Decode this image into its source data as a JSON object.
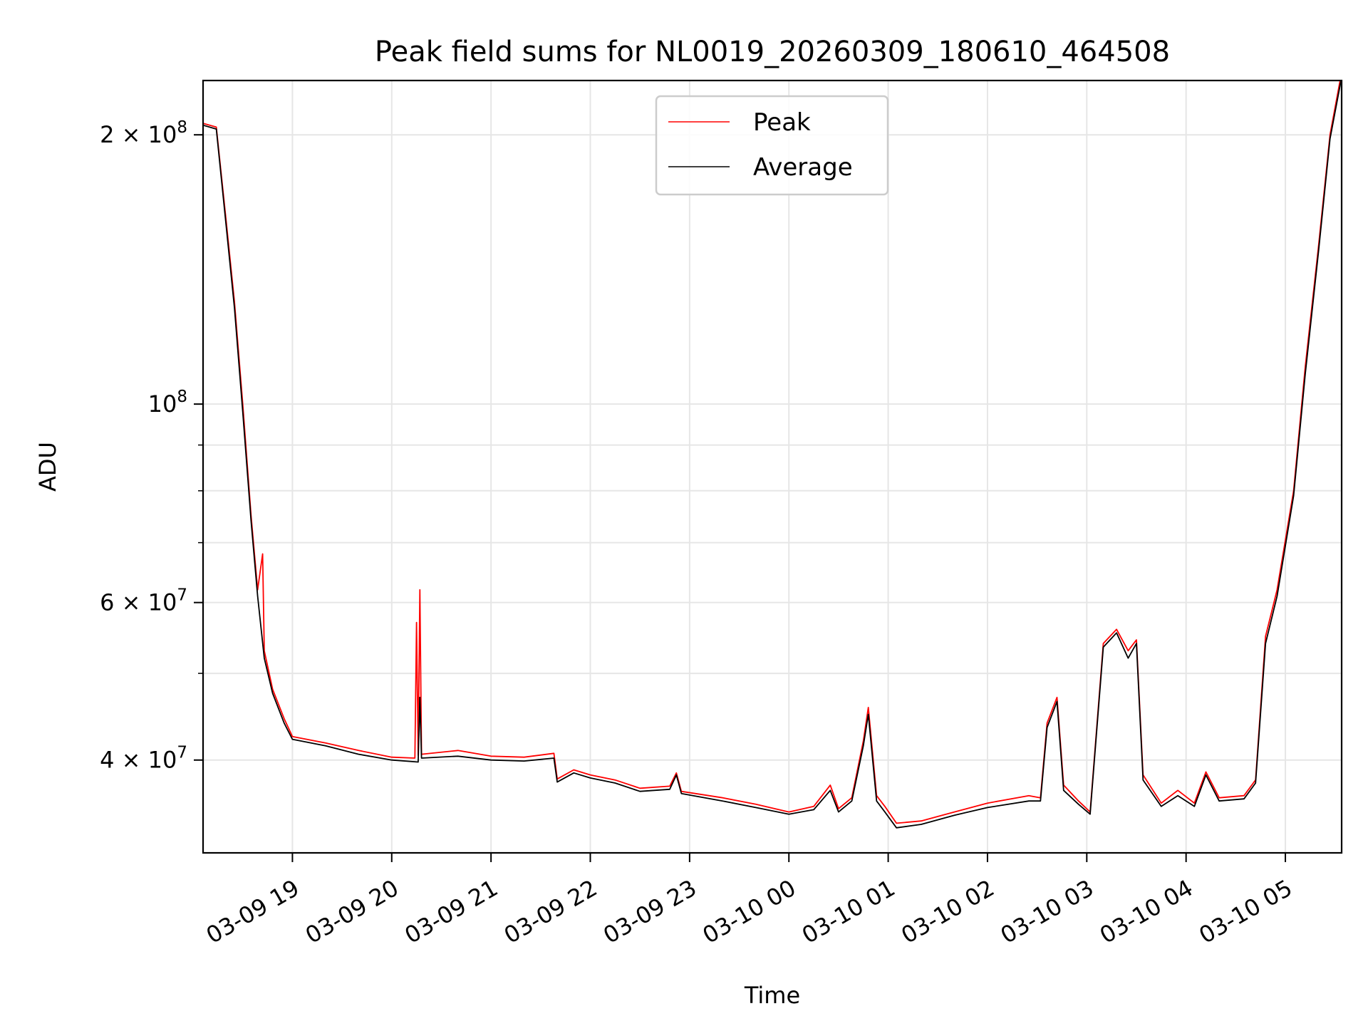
{
  "chart_data": {
    "type": "line",
    "title": "Peak field sums for NL0019_20260309_180610_464508",
    "xlabel": "Time",
    "ylabel": "ADU",
    "y_scale": "log",
    "ylim": [
      31500000,
      230000000
    ],
    "xlim": [
      "2026-03-09 18:06",
      "2026-03-10 05:34"
    ],
    "grid": true,
    "legend_position": "top-center",
    "x_ticks": [
      {
        "value": "2026-03-09 19:00",
        "label": "03-09 19"
      },
      {
        "value": "2026-03-09 20:00",
        "label": "03-09 20"
      },
      {
        "value": "2026-03-09 21:00",
        "label": "03-09 21"
      },
      {
        "value": "2026-03-09 22:00",
        "label": "03-09 22"
      },
      {
        "value": "2026-03-09 23:00",
        "label": "03-09 23"
      },
      {
        "value": "2026-03-10 00:00",
        "label": "03-10 00"
      },
      {
        "value": "2026-03-10 01:00",
        "label": "03-10 01"
      },
      {
        "value": "2026-03-10 02:00",
        "label": "03-10 02"
      },
      {
        "value": "2026-03-10 03:00",
        "label": "03-10 03"
      },
      {
        "value": "2026-03-10 04:00",
        "label": "03-10 04"
      },
      {
        "value": "2026-03-10 05:00",
        "label": "03-10 05"
      }
    ],
    "y_ticks_major": [
      {
        "value": 40000000,
        "base": "4 × 10",
        "exp": "7"
      },
      {
        "value": 60000000,
        "base": "6 × 10",
        "exp": "7"
      },
      {
        "value": 100000000,
        "base": "10",
        "exp": "8"
      },
      {
        "value": 200000000,
        "base": "2 × 10",
        "exp": "8"
      }
    ],
    "y_ticks_minor": [
      50000000,
      70000000,
      80000000,
      90000000
    ],
    "series": [
      {
        "name": "Peak",
        "color": "#ff0000",
        "points": [
          [
            "2026-03-09 18:06",
            206000000
          ],
          [
            "2026-03-09 18:14",
            204000000
          ],
          [
            "2026-03-09 18:20",
            160000000
          ],
          [
            "2026-03-09 18:25",
            130000000
          ],
          [
            "2026-03-09 18:30",
            100000000
          ],
          [
            "2026-03-09 18:35",
            75000000
          ],
          [
            "2026-03-09 18:39",
            62000000
          ],
          [
            "2026-03-09 18:42",
            68000000
          ],
          [
            "2026-03-09 18:43",
            53000000
          ],
          [
            "2026-03-09 18:48",
            48000000
          ],
          [
            "2026-03-09 18:55",
            44500000
          ],
          [
            "2026-03-09 19:00",
            42500000
          ],
          [
            "2026-03-09 19:20",
            41800000
          ],
          [
            "2026-03-09 19:40",
            41000000
          ],
          [
            "2026-03-09 20:00",
            40300000
          ],
          [
            "2026-03-09 20:14",
            40200000
          ],
          [
            "2026-03-09 20:15",
            57000000
          ],
          [
            "2026-03-09 20:16",
            40500000
          ],
          [
            "2026-03-09 20:17",
            62000000
          ],
          [
            "2026-03-09 20:18",
            40600000
          ],
          [
            "2026-03-09 20:40",
            41000000
          ],
          [
            "2026-03-09 21:00",
            40400000
          ],
          [
            "2026-03-09 21:20",
            40300000
          ],
          [
            "2026-03-09 21:38",
            40700000
          ],
          [
            "2026-03-09 21:40",
            38100000
          ],
          [
            "2026-03-09 21:50",
            39000000
          ],
          [
            "2026-03-09 22:00",
            38500000
          ],
          [
            "2026-03-09 22:15",
            38000000
          ],
          [
            "2026-03-09 22:30",
            37200000
          ],
          [
            "2026-03-09 22:48",
            37400000
          ],
          [
            "2026-03-09 22:52",
            38700000
          ],
          [
            "2026-03-09 22:55",
            36900000
          ],
          [
            "2026-03-09 23:20",
            36300000
          ],
          [
            "2026-03-09 23:40",
            35700000
          ],
          [
            "2026-03-10 00:00",
            35000000
          ],
          [
            "2026-03-10 00:15",
            35500000
          ],
          [
            "2026-03-10 00:25",
            37500000
          ],
          [
            "2026-03-10 00:30",
            35300000
          ],
          [
            "2026-03-10 00:38",
            36300000
          ],
          [
            "2026-03-10 00:45",
            42000000
          ],
          [
            "2026-03-10 00:48",
            45800000
          ],
          [
            "2026-03-10 00:53",
            36500000
          ],
          [
            "2026-03-10 00:58",
            35500000
          ],
          [
            "2026-03-10 01:05",
            34000000
          ],
          [
            "2026-03-10 01:20",
            34200000
          ],
          [
            "2026-03-10 01:40",
            35000000
          ],
          [
            "2026-03-10 02:00",
            35800000
          ],
          [
            "2026-03-10 02:25",
            36500000
          ],
          [
            "2026-03-10 02:32",
            36300000
          ],
          [
            "2026-03-10 02:36",
            44000000
          ],
          [
            "2026-03-10 02:42",
            47000000
          ],
          [
            "2026-03-10 02:46",
            37500000
          ],
          [
            "2026-03-10 02:55",
            36000000
          ],
          [
            "2026-03-10 03:02",
            35000000
          ],
          [
            "2026-03-10 03:10",
            54000000
          ],
          [
            "2026-03-10 03:18",
            56000000
          ],
          [
            "2026-03-10 03:25",
            53000000
          ],
          [
            "2026-03-10 03:30",
            54500000
          ],
          [
            "2026-03-10 03:34",
            38500000
          ],
          [
            "2026-03-10 03:45",
            35800000
          ],
          [
            "2026-03-10 03:55",
            37000000
          ],
          [
            "2026-03-10 04:05",
            35800000
          ],
          [
            "2026-03-10 04:12",
            38800000
          ],
          [
            "2026-03-10 04:20",
            36300000
          ],
          [
            "2026-03-10 04:35",
            36500000
          ],
          [
            "2026-03-10 04:42",
            38000000
          ],
          [
            "2026-03-10 04:48",
            55000000
          ],
          [
            "2026-03-10 04:55",
            62000000
          ],
          [
            "2026-03-10 05:05",
            80000000
          ],
          [
            "2026-03-10 05:12",
            110000000
          ],
          [
            "2026-03-10 05:20",
            150000000
          ],
          [
            "2026-03-10 05:27",
            200000000
          ],
          [
            "2026-03-10 05:34",
            235000000
          ]
        ]
      },
      {
        "name": "Average",
        "color": "#000000",
        "points": [
          [
            "2026-03-09 18:06",
            205000000
          ],
          [
            "2026-03-09 18:14",
            203000000
          ],
          [
            "2026-03-09 18:20",
            158000000
          ],
          [
            "2026-03-09 18:25",
            128000000
          ],
          [
            "2026-03-09 18:30",
            98000000
          ],
          [
            "2026-03-09 18:35",
            74000000
          ],
          [
            "2026-03-09 18:39",
            61000000
          ],
          [
            "2026-03-09 18:43",
            52000000
          ],
          [
            "2026-03-09 18:48",
            47500000
          ],
          [
            "2026-03-09 18:55",
            44000000
          ],
          [
            "2026-03-09 19:00",
            42200000
          ],
          [
            "2026-03-09 19:20",
            41500000
          ],
          [
            "2026-03-09 19:40",
            40600000
          ],
          [
            "2026-03-09 20:00",
            40000000
          ],
          [
            "2026-03-09 20:16",
            39800000
          ],
          [
            "2026-03-09 20:17",
            47000000
          ],
          [
            "2026-03-09 20:18",
            40200000
          ],
          [
            "2026-03-09 20:40",
            40400000
          ],
          [
            "2026-03-09 21:00",
            40000000
          ],
          [
            "2026-03-09 21:20",
            39900000
          ],
          [
            "2026-03-09 21:38",
            40200000
          ],
          [
            "2026-03-09 21:40",
            37800000
          ],
          [
            "2026-03-09 21:50",
            38700000
          ],
          [
            "2026-03-09 22:00",
            38200000
          ],
          [
            "2026-03-09 22:15",
            37700000
          ],
          [
            "2026-03-09 22:30",
            36900000
          ],
          [
            "2026-03-09 22:48",
            37100000
          ],
          [
            "2026-03-09 22:52",
            38500000
          ],
          [
            "2026-03-09 22:55",
            36700000
          ],
          [
            "2026-03-09 23:20",
            36000000
          ],
          [
            "2026-03-09 23:40",
            35400000
          ],
          [
            "2026-03-10 00:00",
            34800000
          ],
          [
            "2026-03-10 00:15",
            35200000
          ],
          [
            "2026-03-10 00:25",
            37000000
          ],
          [
            "2026-03-10 00:30",
            35000000
          ],
          [
            "2026-03-10 00:38",
            36000000
          ],
          [
            "2026-03-10 00:45",
            41500000
          ],
          [
            "2026-03-10 00:48",
            45000000
          ],
          [
            "2026-03-10 00:53",
            36000000
          ],
          [
            "2026-03-10 00:58",
            35000000
          ],
          [
            "2026-03-10 01:05",
            33600000
          ],
          [
            "2026-03-10 01:20",
            33900000
          ],
          [
            "2026-03-10 01:40",
            34700000
          ],
          [
            "2026-03-10 02:00",
            35400000
          ],
          [
            "2026-03-10 02:25",
            36000000
          ],
          [
            "2026-03-10 02:32",
            36000000
          ],
          [
            "2026-03-10 02:36",
            43500000
          ],
          [
            "2026-03-10 02:42",
            46500000
          ],
          [
            "2026-03-10 02:46",
            37000000
          ],
          [
            "2026-03-10 02:55",
            35700000
          ],
          [
            "2026-03-10 03:02",
            34800000
          ],
          [
            "2026-03-10 03:10",
            53500000
          ],
          [
            "2026-03-10 03:18",
            55500000
          ],
          [
            "2026-03-10 03:25",
            52000000
          ],
          [
            "2026-03-10 03:30",
            54000000
          ],
          [
            "2026-03-10 03:34",
            38000000
          ],
          [
            "2026-03-10 03:45",
            35500000
          ],
          [
            "2026-03-10 03:55",
            36500000
          ],
          [
            "2026-03-10 04:05",
            35500000
          ],
          [
            "2026-03-10 04:12",
            38500000
          ],
          [
            "2026-03-10 04:20",
            36000000
          ],
          [
            "2026-03-10 04:35",
            36200000
          ],
          [
            "2026-03-10 04:42",
            37700000
          ],
          [
            "2026-03-10 04:48",
            54000000
          ],
          [
            "2026-03-10 04:55",
            61000000
          ],
          [
            "2026-03-10 05:05",
            79000000
          ],
          [
            "2026-03-10 05:12",
            108000000
          ],
          [
            "2026-03-10 05:20",
            148000000
          ],
          [
            "2026-03-10 05:27",
            198000000
          ],
          [
            "2026-03-10 05:34",
            232000000
          ]
        ]
      }
    ]
  }
}
